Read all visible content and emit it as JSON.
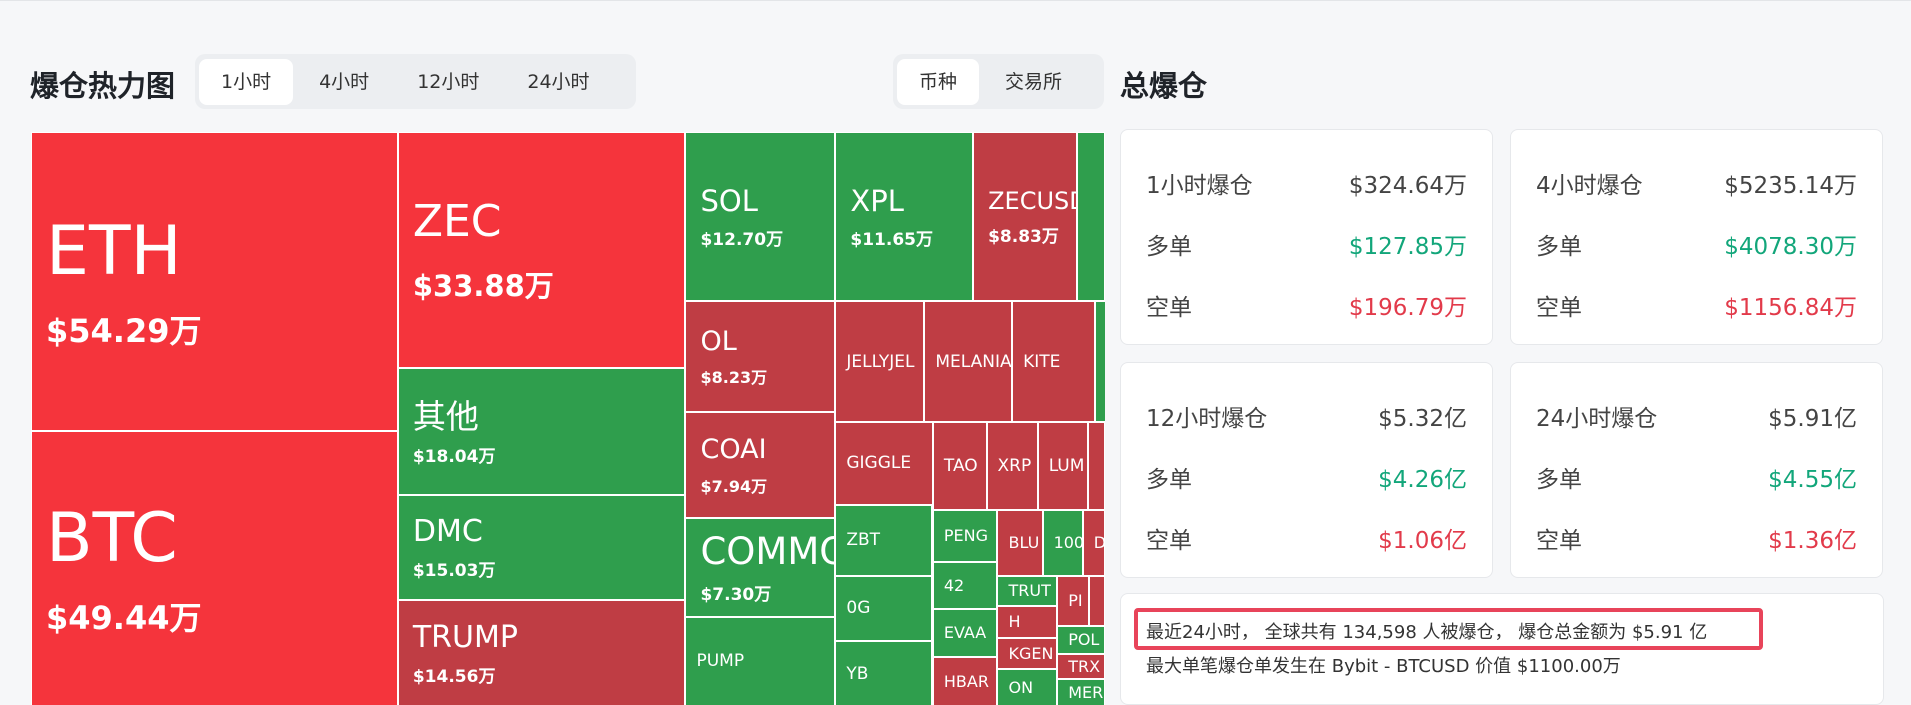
{
  "header": {
    "title": "爆仓热力图",
    "time_tabs": [
      "1小时",
      "4小时",
      "12小时",
      "24小时"
    ],
    "view_tabs": [
      "币种",
      "交易所"
    ],
    "summary_title": "总爆仓"
  },
  "heatmap": {
    "tiles": [
      {
        "label": "ETH",
        "value": "$54.29万"
      },
      {
        "label": "BTC",
        "value": "$49.44万"
      },
      {
        "label": "ZEC",
        "value": "$33.88万"
      },
      {
        "label": "其他",
        "value": "$18.04万"
      },
      {
        "label": "DMC",
        "value": "$15.03万"
      },
      {
        "label": "TRUMP",
        "value": "$14.56万"
      },
      {
        "label": "SOL",
        "value": "$12.70万"
      },
      {
        "label": "XPL",
        "value": "$11.65万"
      },
      {
        "label": "ZECUSD",
        "value": "$8.83万"
      },
      {
        "label": "OL",
        "value": "$8.23万"
      },
      {
        "label": "COAI",
        "value": "$7.94万"
      },
      {
        "label": "COMMO",
        "value": "$7.30万"
      },
      {
        "label": "PUMP"
      },
      {
        "label": "JELLYJEL"
      },
      {
        "label": "MELANIA"
      },
      {
        "label": "KITE"
      },
      {
        "label": "GIGGLE"
      },
      {
        "label": "TAO"
      },
      {
        "label": "XRP"
      },
      {
        "label": "LUM"
      },
      {
        "label": "ZBT"
      },
      {
        "label": "0G"
      },
      {
        "label": "YB"
      },
      {
        "label": "PENG"
      },
      {
        "label": "42"
      },
      {
        "label": "EVAA"
      },
      {
        "label": "HBAR"
      },
      {
        "label": "BLU"
      },
      {
        "label": "100"
      },
      {
        "label": "D"
      },
      {
        "label": "TRUT"
      },
      {
        "label": "H"
      },
      {
        "label": "KGEN"
      },
      {
        "label": "ON"
      },
      {
        "label": "PI"
      },
      {
        "label": "POL"
      },
      {
        "label": "TRX"
      },
      {
        "label": "MER"
      }
    ]
  },
  "summary": {
    "cards": [
      {
        "title": "1小时爆仓",
        "total": "$324.64万",
        "long_label": "多单",
        "long": "$127.85万",
        "short_label": "空单",
        "short": "$196.79万"
      },
      {
        "title": "4小时爆仓",
        "total": "$5235.14万",
        "long_label": "多单",
        "long": "$4078.30万",
        "short_label": "空单",
        "short": "$1156.84万"
      },
      {
        "title": "12小时爆仓",
        "total": "$5.32亿",
        "long_label": "多单",
        "long": "$4.26亿",
        "short_label": "空单",
        "short": "$1.06亿"
      },
      {
        "title": "24小时爆仓",
        "total": "$5.91亿",
        "long_label": "多单",
        "long": "$4.55亿",
        "short_label": "空单",
        "short": "$1.36亿"
      }
    ]
  },
  "footer": {
    "line1": "最近24小时， 全球共有 134,598 人被爆仓， 爆仓总金额为 $5.91 亿",
    "line2": "最大单笔爆仓单发生在 Bybit - BTCUSD 价值 $1100.00万"
  }
}
